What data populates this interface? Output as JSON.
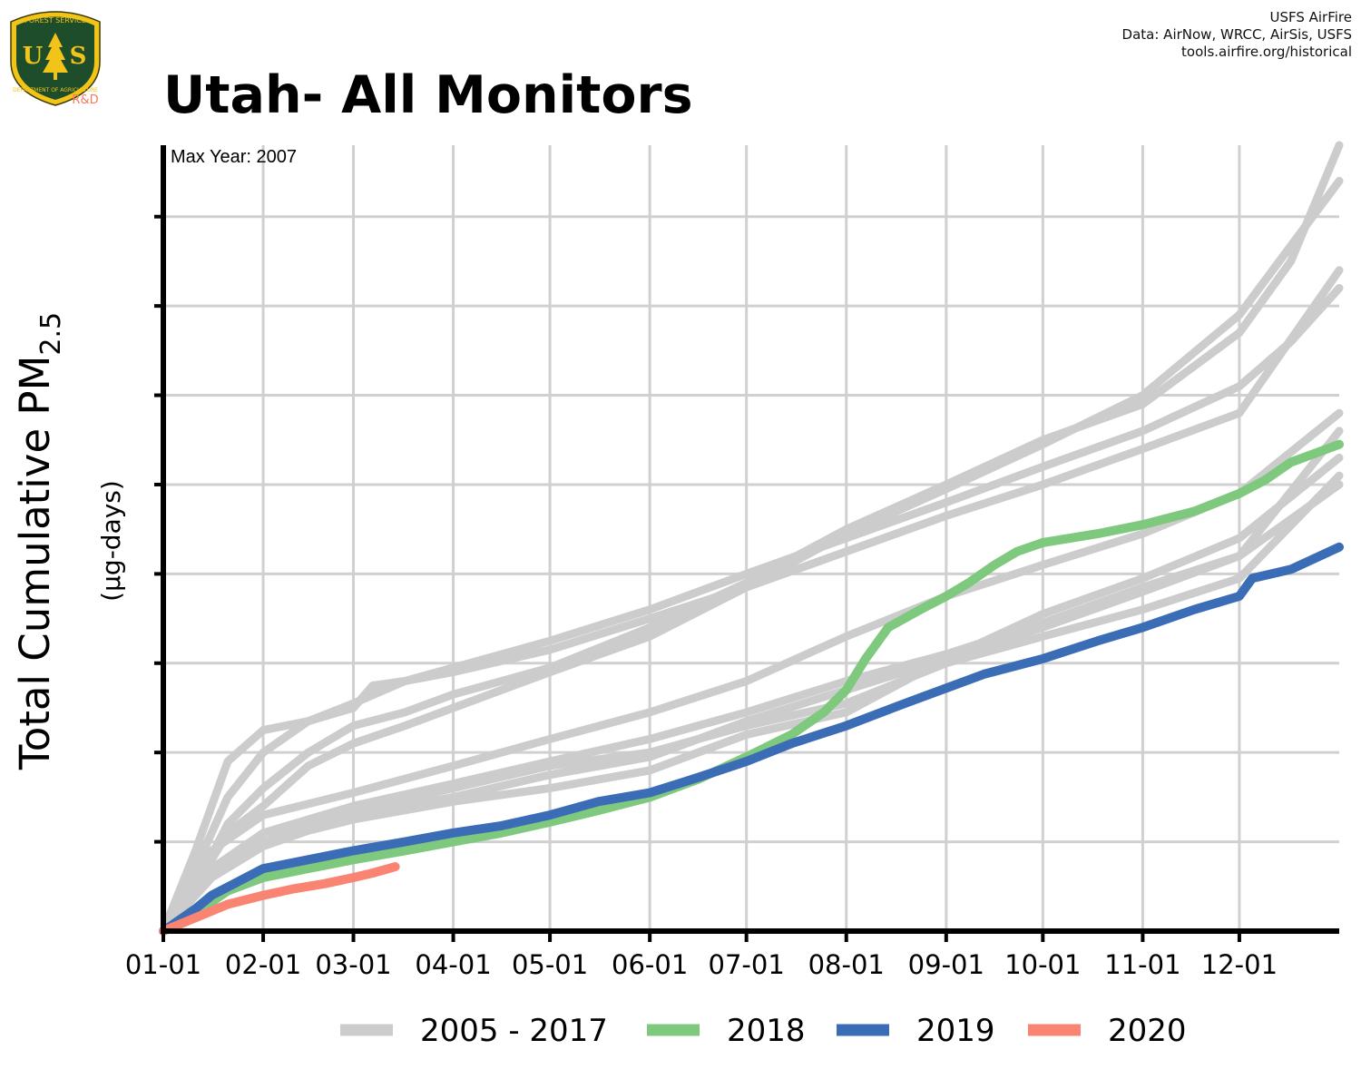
{
  "header": {
    "title": "Utah- All Monitors",
    "credits": [
      "USFS AirFire",
      "Data: AirNow, WRCC, AirSis, USFS",
      "tools.airfire.org/historical"
    ]
  },
  "logo": {
    "top_text": "FOREST SERVICE",
    "bottom_text": "DEPARTMENT OF AGRICULTURE",
    "letters": [
      "U",
      "S"
    ],
    "badge": "R&D",
    "colors": {
      "shield_fill": "#1e4d2b",
      "shield_border": "#f2c318",
      "badge": "#f47a5e"
    }
  },
  "chart_data": {
    "type": "line",
    "ylabel": "Total Cumulative PM",
    "ylabel_sub": "2.5",
    "ylabel_units": "(µg-days)",
    "annotation": "Max Year: 2007",
    "x_ticks": [
      "01-01",
      "02-01",
      "03-01",
      "04-01",
      "05-01",
      "06-01",
      "07-01",
      "08-01",
      "09-01",
      "10-01",
      "11-01",
      "12-01"
    ],
    "x_tick_days": [
      0,
      31,
      59,
      90,
      120,
      151,
      181,
      212,
      243,
      273,
      304,
      334
    ],
    "xlim": [
      0,
      365
    ],
    "ylim": [
      0,
      8.8
    ],
    "y_tick_labels_shown": false,
    "grid": true,
    "legend_position": "bottom",
    "legend": [
      {
        "label": "2005 - 2017",
        "color": "#cccccc"
      },
      {
        "label": "2018",
        "color": "#7ec97e"
      },
      {
        "label": "2019",
        "color": "#3a6db5"
      },
      {
        "label": "2020",
        "color": "#f98472"
      }
    ],
    "series": [
      {
        "group": "2005 - 2017",
        "color": "#cccccc",
        "x": [
          0,
          10,
          20,
          31,
          45,
          59,
          65,
          75,
          90,
          120,
          151,
          181,
          212,
          243,
          273,
          304,
          334,
          350,
          365
        ],
        "y": [
          0,
          0.9,
          1.9,
          2.25,
          2.35,
          2.5,
          2.75,
          2.8,
          2.95,
          3.25,
          3.6,
          4.0,
          4.4,
          4.8,
          5.2,
          5.6,
          6.1,
          6.6,
          7.2
        ]
      },
      {
        "group": "2005 - 2017",
        "color": "#cccccc",
        "x": [
          0,
          10,
          20,
          31,
          45,
          59,
          75,
          90,
          120,
          151,
          181,
          212,
          243,
          273,
          304,
          334,
          365
        ],
        "y": [
          0,
          0.7,
          1.5,
          2.0,
          2.35,
          2.55,
          2.8,
          2.9,
          3.15,
          3.5,
          3.85,
          4.25,
          4.65,
          5.0,
          5.4,
          5.8,
          7.4
        ]
      },
      {
        "group": "2005 - 2017",
        "color": "#cccccc",
        "x": [
          0,
          10,
          20,
          31,
          45,
          59,
          75,
          90,
          120,
          151,
          181,
          212,
          243,
          273,
          304,
          334,
          350,
          365
        ],
        "y": [
          0,
          0.5,
          1.2,
          1.6,
          2.0,
          2.3,
          2.45,
          2.65,
          2.95,
          3.4,
          3.9,
          4.5,
          5.0,
          5.5,
          5.9,
          6.7,
          7.5,
          8.8
        ]
      },
      {
        "group": "2005 - 2017",
        "color": "#cccccc",
        "x": [
          0,
          10,
          20,
          31,
          45,
          59,
          75,
          90,
          120,
          151,
          181,
          212,
          243,
          273,
          304,
          334,
          365
        ],
        "y": [
          0,
          0.5,
          1.1,
          1.4,
          1.85,
          2.1,
          2.3,
          2.5,
          2.9,
          3.3,
          3.85,
          4.45,
          4.95,
          5.45,
          6.0,
          6.9,
          8.4
        ]
      },
      {
        "group": "2005 - 2017",
        "color": "#cccccc",
        "x": [
          0,
          15,
          31,
          59,
          90,
          120,
          151,
          181,
          212,
          243,
          273,
          304,
          334,
          365
        ],
        "y": [
          0,
          0.9,
          1.3,
          1.55,
          1.85,
          2.15,
          2.45,
          2.8,
          3.3,
          3.75,
          4.1,
          4.45,
          4.9,
          5.8
        ]
      },
      {
        "group": "2005 - 2017",
        "color": "#cccccc",
        "x": [
          0,
          15,
          31,
          59,
          90,
          120,
          151,
          181,
          212,
          243,
          273,
          304,
          334,
          365
        ],
        "y": [
          0,
          0.7,
          1.1,
          1.4,
          1.65,
          1.9,
          2.15,
          2.45,
          2.8,
          3.1,
          3.45,
          3.85,
          4.2,
          5.6
        ]
      },
      {
        "group": "2005 - 2017",
        "color": "#cccccc",
        "x": [
          0,
          15,
          31,
          59,
          90,
          120,
          151,
          181,
          212,
          243,
          273,
          304,
          334,
          365
        ],
        "y": [
          0,
          0.6,
          1.0,
          1.35,
          1.6,
          1.85,
          2.0,
          2.3,
          2.55,
          3.0,
          3.3,
          3.6,
          3.95,
          5.1
        ]
      },
      {
        "group": "2005 - 2017",
        "color": "#cccccc",
        "x": [
          0,
          15,
          31,
          59,
          90,
          120,
          151,
          181,
          212,
          243,
          273,
          304,
          334,
          365
        ],
        "y": [
          0,
          0.6,
          1.0,
          1.25,
          1.45,
          1.6,
          1.8,
          2.2,
          2.45,
          3.05,
          3.55,
          3.95,
          4.4,
          5.3
        ]
      },
      {
        "group": "2005 - 2017",
        "color": "#cccccc",
        "x": [
          0,
          15,
          31,
          59,
          90,
          120,
          151,
          181,
          212,
          243,
          273,
          304,
          334,
          365
        ],
        "y": [
          0,
          0.6,
          0.95,
          1.3,
          1.5,
          1.75,
          1.95,
          2.35,
          2.7,
          3.05,
          3.4,
          3.8,
          4.2,
          5.0
        ]
      },
      {
        "group": "2018",
        "color": "#7ec97e",
        "x": [
          0,
          10,
          20,
          31,
          45,
          59,
          75,
          90,
          105,
          120,
          135,
          151,
          166,
          181,
          195,
          205,
          212,
          218,
          225,
          235,
          243,
          250,
          258,
          265,
          273,
          290,
          304,
          320,
          334,
          342,
          350,
          365
        ],
        "y": [
          0,
          0.2,
          0.45,
          0.6,
          0.7,
          0.8,
          0.9,
          1.0,
          1.1,
          1.22,
          1.35,
          1.5,
          1.7,
          1.95,
          2.2,
          2.45,
          2.7,
          3.05,
          3.4,
          3.6,
          3.75,
          3.9,
          4.1,
          4.25,
          4.35,
          4.45,
          4.55,
          4.7,
          4.9,
          5.05,
          5.25,
          5.45
        ]
      },
      {
        "group": "2019",
        "color": "#3a6db5",
        "x": [
          0,
          10,
          15,
          31,
          45,
          59,
          75,
          90,
          105,
          120,
          135,
          151,
          166,
          181,
          195,
          212,
          228,
          243,
          255,
          273,
          290,
          304,
          320,
          334,
          338,
          350,
          365
        ],
        "y": [
          0,
          0.25,
          0.4,
          0.7,
          0.8,
          0.9,
          1.0,
          1.1,
          1.18,
          1.3,
          1.45,
          1.55,
          1.72,
          1.9,
          2.1,
          2.3,
          2.52,
          2.72,
          2.88,
          3.05,
          3.25,
          3.4,
          3.6,
          3.75,
          3.95,
          4.05,
          4.3
        ]
      },
      {
        "group": "2020",
        "color": "#f98472",
        "x": [
          0,
          10,
          20,
          31,
          40,
          50,
          59,
          65,
          72
        ],
        "y": [
          0,
          0.15,
          0.3,
          0.4,
          0.47,
          0.53,
          0.6,
          0.65,
          0.72
        ]
      }
    ]
  }
}
